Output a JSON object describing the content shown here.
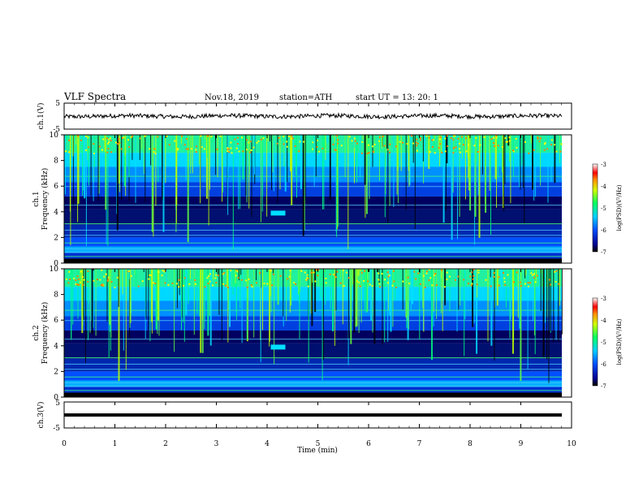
{
  "header": {
    "title": "VLF  Spectra",
    "date": "Nov.18, 2019",
    "station": "station=ATH",
    "start": "start  UT  =    13: 20: 1"
  },
  "chart_data": [
    {
      "type": "line",
      "name": "ch1-waveform",
      "ylabel": "ch.1(V)",
      "ylim": [
        -5,
        5
      ],
      "yticks": [
        "5",
        "-5"
      ],
      "trace_level": 0
    },
    {
      "type": "heatmap",
      "name": "ch1-spectrogram",
      "ylabel": "ch.1\nFrequency (kHz)",
      "ylim": [
        0,
        10
      ],
      "yticks": [
        "0",
        "2",
        "4",
        "6",
        "8",
        "10"
      ],
      "colorbar": {
        "label": "log(PSD)(V²/Hz)",
        "range": [
          -7,
          -3
        ],
        "ticks": [
          "-3",
          "-4",
          "-5",
          "-6",
          "-7"
        ]
      },
      "feature": {
        "x_min": 4.2,
        "freq_khz": 3.9,
        "note_label": ""
      }
    },
    {
      "type": "heatmap",
      "name": "ch2-spectrogram",
      "ylabel": "ch.2\nFrequency (kHz)",
      "ylim": [
        0,
        10
      ],
      "yticks": [
        "0",
        "2",
        "4",
        "6",
        "8",
        "10"
      ],
      "colorbar": {
        "label": "log(PSD)(V²/Hz)",
        "range": [
          -7,
          -3
        ],
        "ticks": [
          "-3",
          "-4",
          "-5",
          "-6",
          "-7"
        ]
      },
      "feature": {
        "x_min": 4.2,
        "freq_khz": 3.9,
        "note_label": ""
      }
    },
    {
      "type": "line",
      "name": "ch3-waveform",
      "ylabel": "ch.3(V)",
      "ylim": [
        -5,
        5
      ],
      "yticks": [
        "5",
        "-5"
      ],
      "trace_level": 0
    }
  ],
  "xaxis": {
    "label": "Time  (min)",
    "xlim": [
      0,
      10
    ],
    "ticks": [
      "0",
      "1",
      "2",
      "3",
      "4",
      "5",
      "6",
      "7",
      "8",
      "9",
      "10"
    ]
  },
  "colors": {
    "low": "#00007a",
    "mid": "#00c8ff",
    "green": "#00ff80",
    "high": "#ffff00",
    "top": "#ff0000"
  }
}
